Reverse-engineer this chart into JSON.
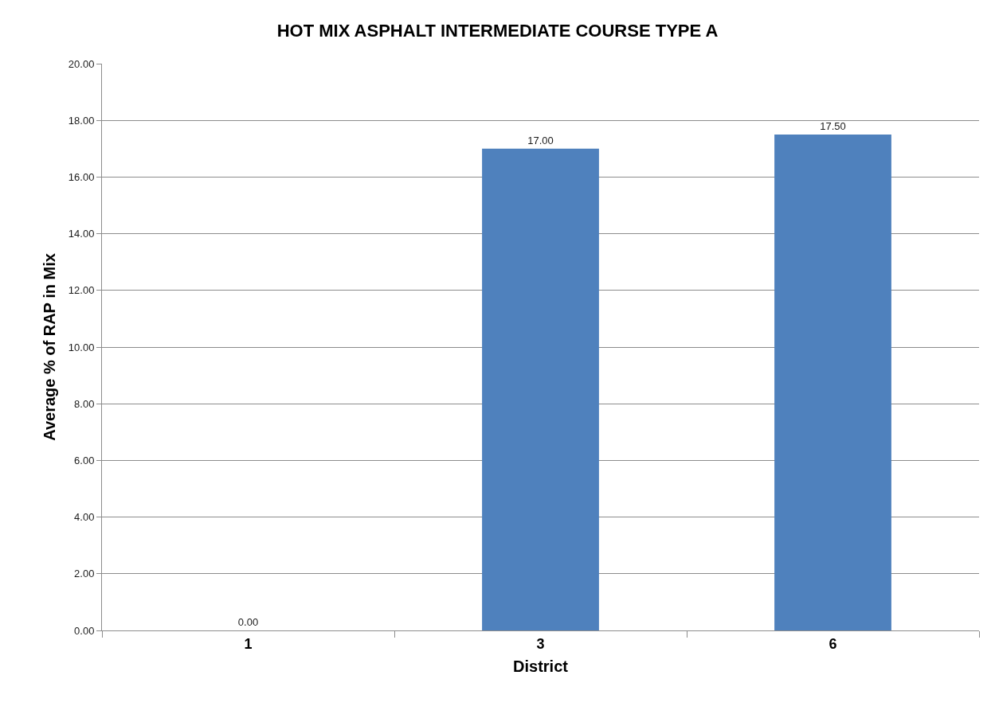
{
  "chart_data": {
    "type": "bar",
    "title": "HOT MIX ASPHALT INTERMEDIATE COURSE TYPE A",
    "xlabel": "District",
    "ylabel": "Average % of RAP in Mix",
    "categories": [
      "1",
      "3",
      "6"
    ],
    "values": [
      0,
      17,
      17.5
    ],
    "value_labels": [
      "0.00",
      "17.00",
      "17.50"
    ],
    "color": "#4f81bd",
    "ylim": [
      0,
      20
    ],
    "yticks": [
      {
        "value": 0,
        "label": "0.00"
      },
      {
        "value": 2,
        "label": "2.00"
      },
      {
        "value": 4,
        "label": "4.00"
      },
      {
        "value": 6,
        "label": "6.00"
      },
      {
        "value": 8,
        "label": "8.00"
      },
      {
        "value": 10,
        "label": "10.00"
      },
      {
        "value": 12,
        "label": "12.00"
      },
      {
        "value": 14,
        "label": "14.00"
      },
      {
        "value": 16,
        "label": "16.00"
      },
      {
        "value": 18,
        "label": "18.00"
      },
      {
        "value": 20,
        "label": "20.00"
      }
    ],
    "grid": "y"
  }
}
